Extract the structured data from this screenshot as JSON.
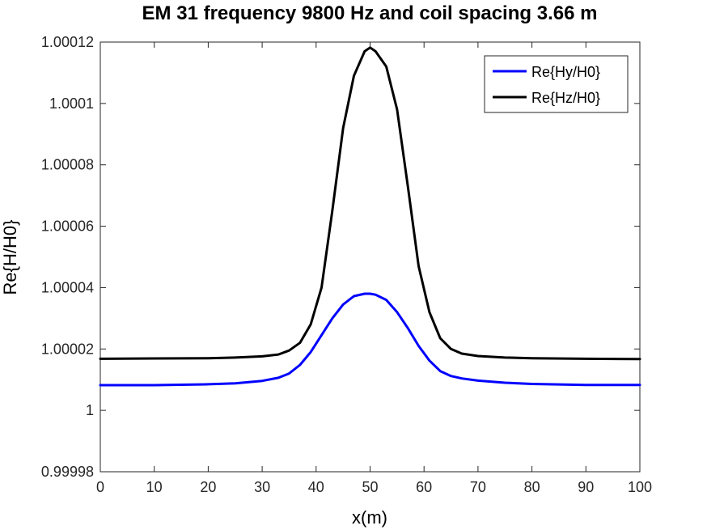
{
  "chart_data": {
    "type": "line",
    "title": "EM 31 frequency 9800 Hz and coil spacing 3.66 m",
    "xlabel": "x(m)",
    "ylabel": "Re{H/H0}",
    "xlim": [
      0,
      100
    ],
    "ylim": [
      0.99998,
      1.00012
    ],
    "xticks": [
      0,
      10,
      20,
      30,
      40,
      50,
      60,
      70,
      80,
      90,
      100
    ],
    "xtick_labels": [
      "0",
      "10",
      "20",
      "30",
      "40",
      "50",
      "60",
      "70",
      "80",
      "90",
      "100"
    ],
    "yticks": [
      0.99998,
      1.0,
      1.00002,
      1.00004,
      1.00006,
      1.00008,
      1.0001,
      1.00012
    ],
    "ytick_labels": [
      "0.99998",
      "1",
      "1.00002",
      "1.00004",
      "1.00006",
      "1.00008",
      "1.0001",
      "1.00012"
    ],
    "grid": false,
    "legend_position": "top-right",
    "x": [
      0,
      10,
      20,
      25,
      30,
      33,
      35,
      37,
      39,
      41,
      43,
      45,
      47,
      49,
      50,
      51,
      53,
      55,
      57,
      59,
      61,
      63,
      65,
      67,
      70,
      75,
      80,
      90,
      100
    ],
    "series": [
      {
        "name": "Re{Hy/H0}",
        "color": "#0000ff",
        "values": [
          1.0000082,
          1.0000082,
          1.0000085,
          1.0000088,
          1.0000096,
          1.0000106,
          1.000012,
          1.0000148,
          1.000019,
          1.0000245,
          1.00003,
          1.0000345,
          1.0000372,
          1.000038,
          1.000038,
          1.0000377,
          1.000036,
          1.000032,
          1.0000268,
          1.000021,
          1.0000162,
          1.0000128,
          1.0000112,
          1.0000104,
          1.0000097,
          1.000009,
          1.0000086,
          1.0000083,
          1.0000083
        ]
      },
      {
        "name": "Re{Hz/H0}",
        "color": "#000000",
        "values": [
          1.0000168,
          1.0000169,
          1.000017,
          1.0000172,
          1.0000176,
          1.0000182,
          1.0000195,
          1.000022,
          1.000028,
          1.00004,
          1.000065,
          1.000092,
          1.000109,
          1.000117,
          1.0001182,
          1.000117,
          1.000112,
          1.000098,
          1.000073,
          1.000047,
          1.000032,
          1.0000235,
          1.00002,
          1.0000185,
          1.0000177,
          1.0000172,
          1.000017,
          1.0000168,
          1.0000167
        ]
      }
    ]
  }
}
